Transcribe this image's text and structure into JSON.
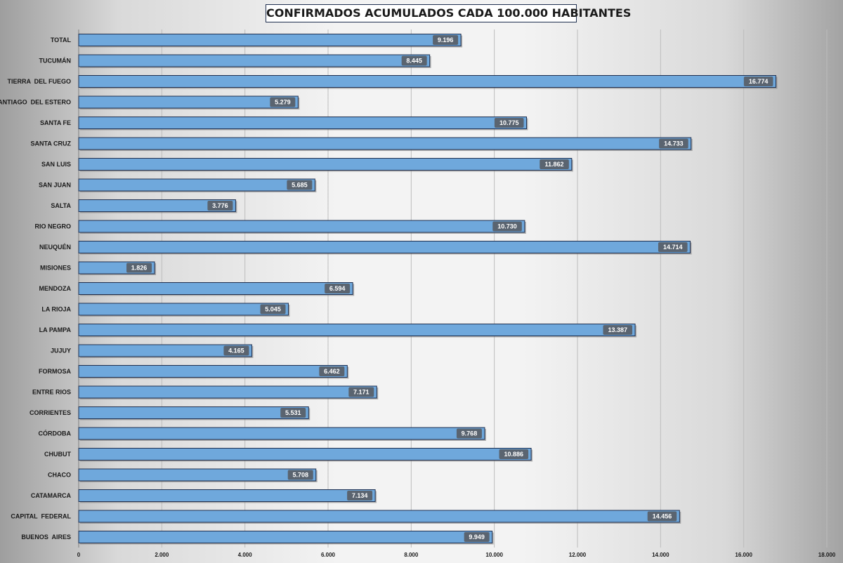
{
  "chart_data": {
    "type": "bar",
    "orientation": "horizontal",
    "title": "CONFIRMADOS ACUMULADOS CADA 100.000 HABITANTES",
    "xlim": [
      0,
      18000
    ],
    "x_ticks": [
      0,
      2000,
      4000,
      6000,
      8000,
      10000,
      12000,
      14000,
      16000,
      18000
    ],
    "x_tick_labels": [
      "0",
      "2.000",
      "4.000",
      "6.000",
      "8.000",
      "10.000",
      "12.000",
      "14.000",
      "16.000",
      "18.000"
    ],
    "gridlines": "vertical",
    "legend": "none",
    "colors": {
      "bar": "#6fa8dc",
      "bar_border": "#1f2f4f",
      "label_box": "#5a6470",
      "label_text": "#ffffff"
    },
    "categories": [
      "TOTAL",
      "TUCUMÁN",
      "TIERRA  DEL FUEGO",
      "SANTIAGO  DEL ESTERO",
      "SANTA FE",
      "SANTA CRUZ",
      "SAN LUIS",
      "SAN JUAN",
      "SALTA",
      "RIO NEGRO",
      "NEUQUÉN",
      "MISIONES",
      "MENDOZA",
      "LA RIOJA",
      "LA PAMPA",
      "JUJUY",
      "FORMOSA",
      "ENTRE RIOS",
      "CORRIENTES",
      "CÓRDOBA",
      "CHUBUT",
      "CHACO",
      "CATAMARCA",
      "CAPITAL  FEDERAL",
      "BUENOS  AIRES"
    ],
    "values": [
      9196,
      8445,
      16774,
      5279,
      10775,
      14733,
      11862,
      5685,
      3776,
      10730,
      14714,
      1826,
      6594,
      5045,
      13387,
      4165,
      6462,
      7171,
      5531,
      9768,
      10886,
      5708,
      7134,
      14456,
      9949
    ],
    "value_labels": [
      "9.196",
      "8.445",
      "16.774",
      "5.279",
      "10.775",
      "14.733",
      "11.862",
      "5.685",
      "3.776",
      "10.730",
      "14.714",
      "1.826",
      "6.594",
      "5.045",
      "13.387",
      "4.165",
      "6.462",
      "7.171",
      "5.531",
      "9.768",
      "10.886",
      "5.708",
      "7.134",
      "14.456",
      "9.949"
    ]
  }
}
